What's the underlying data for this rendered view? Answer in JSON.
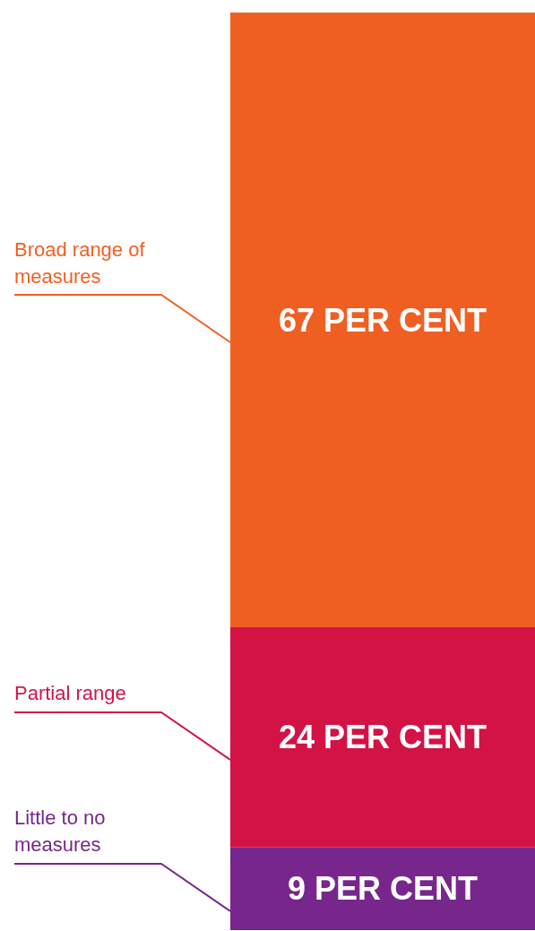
{
  "chart_data": {
    "type": "bar",
    "stacked": true,
    "legend": false,
    "categories": [
      null
    ],
    "series": [
      {
        "name": "Little to no measures",
        "color": "#77278b",
        "values": [
          9
        ],
        "value_labels": [
          "9 PER CENT"
        ]
      },
      {
        "name": "Partial range",
        "color": "#d31245",
        "values": [
          24
        ],
        "value_labels": [
          "24 PER CENT"
        ]
      },
      {
        "name": "Broad range of measures",
        "color": "#f05f22",
        "values": [
          67
        ],
        "value_labels": [
          "67 PER CENT"
        ]
      }
    ]
  }
}
